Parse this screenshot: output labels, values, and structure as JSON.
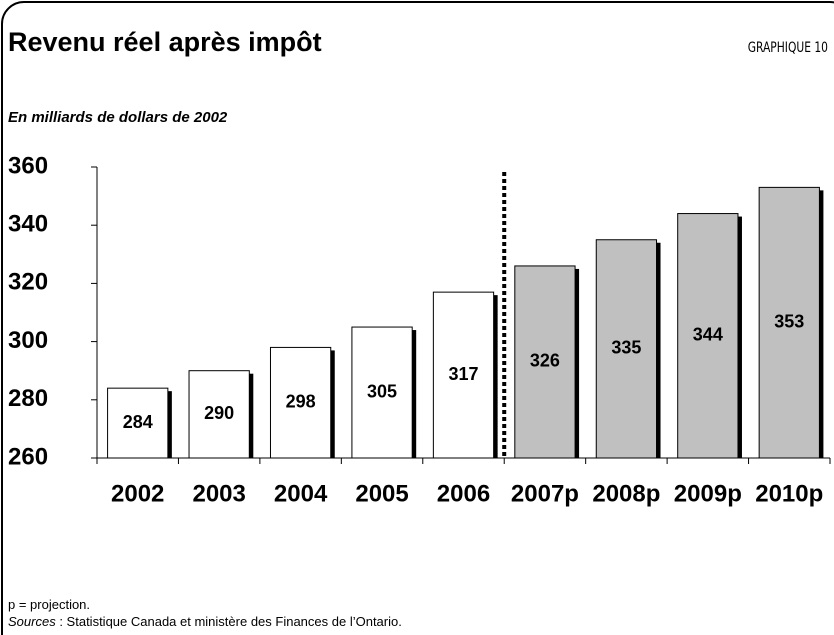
{
  "chart_data": {
    "type": "bar",
    "title": "Revenu réel après impôt",
    "chart_number": "GRAPHIQUE 10",
    "subtitle": "En milliards de dollars de 2002",
    "categories": [
      "2002",
      "2003",
      "2004",
      "2005",
      "2006",
      "2007p",
      "2008p",
      "2009p",
      "2010p"
    ],
    "values": [
      284,
      290,
      298,
      305,
      317,
      326,
      335,
      344,
      353
    ],
    "colors": [
      "#ffffff",
      "#ffffff",
      "#ffffff",
      "#ffffff",
      "#ffffff",
      "#c0c0c0",
      "#c0c0c0",
      "#c0c0c0",
      "#c0c0c0"
    ],
    "ylim": [
      260,
      360
    ],
    "yticks": [
      260,
      280,
      300,
      320,
      340,
      360
    ],
    "grid": false,
    "note": "p = projection.",
    "source_label": "Sources",
    "source_text": ": Statistique Canada et ministère des Finances de l’Ontario."
  }
}
